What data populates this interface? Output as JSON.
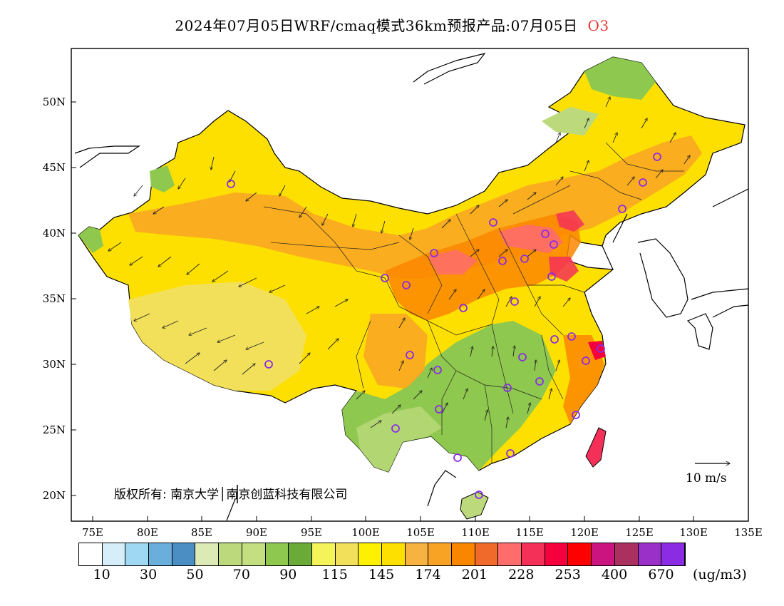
{
  "title": {
    "date_text": "2024年07月05日WRF/cmaq模式36km预报产品:07月05日",
    "pollutant": "O3"
  },
  "axes": {
    "lat_labels": [
      "50N",
      "45N",
      "40N",
      "35N",
      "30N",
      "25N",
      "20N"
    ],
    "lon_labels": [
      "75E",
      "80E",
      "85E",
      "90E",
      "95E",
      "100E",
      "105E",
      "110E",
      "115E",
      "120E",
      "125E",
      "130E",
      "135E"
    ]
  },
  "copyright": "版权所有: 南京大学│南京创蓝科技有限公司",
  "wind_reference": "10 m/s",
  "colorbar": {
    "colors": [
      "#ffffff",
      "#d6eefa",
      "#9fd8f2",
      "#6aaedc",
      "#4a8ec4",
      "#dceab6",
      "#bcd97c",
      "#c3df80",
      "#8ec84e",
      "#6aaa38",
      "#f4f45a",
      "#f2e05a",
      "#fdf000",
      "#fde000",
      "#f7b342",
      "#f9a324",
      "#fa8600",
      "#f06a2c",
      "#fe6c6c",
      "#f53058",
      "#f5003c",
      "#ff0000",
      "#cc1480",
      "#aa3060",
      "#9b30c8",
      "#8b2ce4"
    ],
    "labels": [
      "10",
      "30",
      "50",
      "70",
      "90",
      "115",
      "145",
      "174",
      "201",
      "228",
      "253",
      "400",
      "670"
    ],
    "unit": "(ug/m3)"
  },
  "map_legend": {
    "field": "O3 concentration",
    "overlay": [
      "wind-vectors",
      "province-boundaries",
      "city-markers"
    ]
  }
}
